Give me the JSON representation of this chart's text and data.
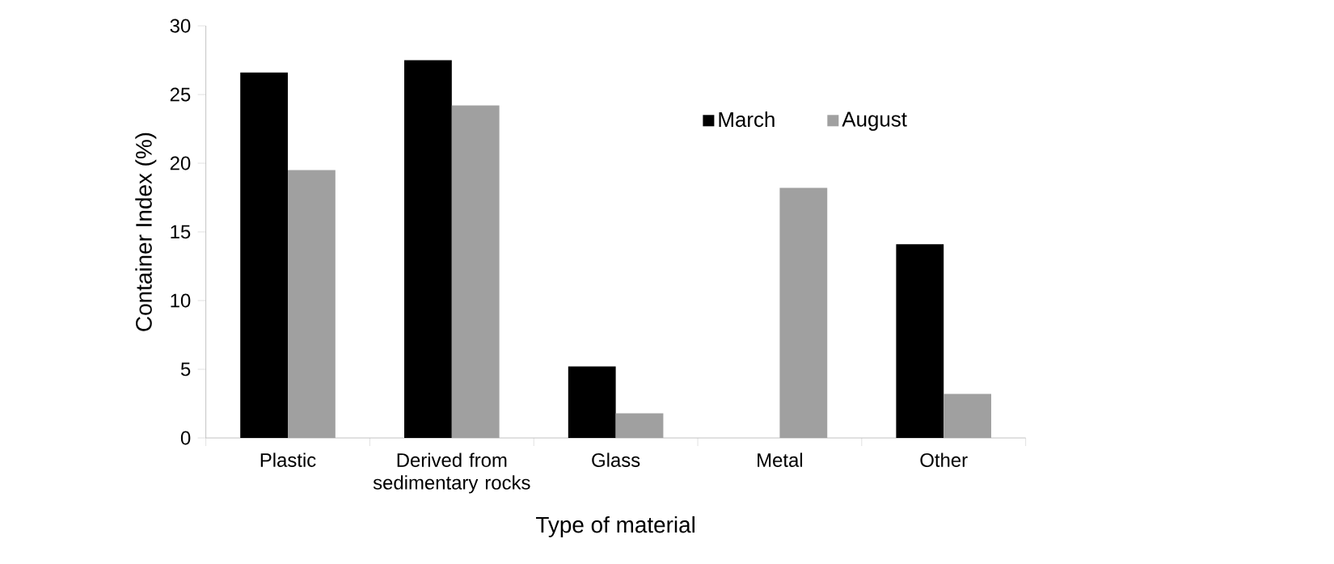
{
  "chart_data": {
    "type": "bar",
    "xlabel": "Type of material",
    "ylabel": "Container Index (%)",
    "categories": [
      "Plastic",
      "Derived from sedimentary rocks",
      "Glass",
      "Metal",
      "Other"
    ],
    "series": [
      {
        "name": "March",
        "color": "#000000",
        "values": [
          26.6,
          27.5,
          5.2,
          0,
          14.1
        ]
      },
      {
        "name": "August",
        "color": "#a0a0a0",
        "values": [
          19.5,
          24.2,
          1.8,
          18.2,
          3.2
        ]
      }
    ],
    "ylim": [
      0,
      30
    ],
    "yticks": [
      0,
      5,
      10,
      15,
      20,
      25,
      30
    ],
    "grid": false,
    "legend": "top right"
  }
}
